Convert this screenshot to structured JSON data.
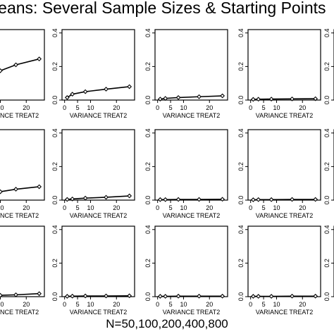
{
  "title": "Means: Several Sample Sizes & Starting Points",
  "bottom_label": "N=50,100,200,400,800",
  "colors": {
    "line": "#000000",
    "frame": "#000000",
    "text": "#000000"
  },
  "chart_data": {
    "type": "line",
    "panel_xlabel": "VARIANCE TREAT2",
    "partial_panel_xlabel": "NCE TREAT2",
    "x_ticks": [
      0,
      5,
      10,
      20
    ],
    "y_ticks": [
      "0.0",
      "0.2",
      "0.4"
    ],
    "ylim": [
      0,
      0.42
    ],
    "xlim": [
      -1,
      27
    ],
    "grid": false,
    "rows": 3,
    "columns": 5,
    "panels": [
      {
        "row": 0,
        "col": 0,
        "partial": true,
        "x": [
          5,
          10,
          16,
          25
        ],
        "y": [
          0.14,
          0.175,
          0.21,
          0.245
        ]
      },
      {
        "row": 0,
        "col": 1,
        "x": [
          1,
          3,
          8,
          16,
          25
        ],
        "y": [
          0.015,
          0.035,
          0.05,
          0.065,
          0.08
        ]
      },
      {
        "row": 0,
        "col": 2,
        "x": [
          1,
          3,
          8,
          16,
          25
        ],
        "y": [
          0.006,
          0.01,
          0.015,
          0.02,
          0.025
        ]
      },
      {
        "row": 0,
        "col": 3,
        "x": [
          1,
          3,
          8,
          16,
          25
        ],
        "y": [
          0.004,
          0.005,
          0.006,
          0.007,
          0.008
        ]
      },
      {
        "row": 1,
        "col": 0,
        "partial": true,
        "x": [
          5,
          10,
          16,
          25
        ],
        "y": [
          0.035,
          0.05,
          0.065,
          0.08
        ]
      },
      {
        "row": 1,
        "col": 1,
        "x": [
          1,
          3,
          8,
          16,
          25
        ],
        "y": [
          0.004,
          0.007,
          0.012,
          0.017,
          0.025
        ]
      },
      {
        "row": 1,
        "col": 2,
        "x": [
          1,
          3,
          8,
          16,
          25
        ],
        "y": [
          0.003,
          0.003,
          0.004,
          0.004,
          0.005
        ]
      },
      {
        "row": 1,
        "col": 3,
        "x": [
          1,
          3,
          8,
          16,
          25
        ],
        "y": [
          0.002,
          0.003,
          0.003,
          0.004,
          0.004
        ]
      },
      {
        "row": 2,
        "col": 0,
        "partial": true,
        "x": [
          5,
          10,
          16,
          25
        ],
        "y": [
          0.005,
          0.008,
          0.011,
          0.018
        ]
      },
      {
        "row": 2,
        "col": 1,
        "x": [
          1,
          3,
          8,
          16,
          25
        ],
        "y": [
          0.002,
          0.003,
          0.004,
          0.004,
          0.005
        ]
      },
      {
        "row": 2,
        "col": 2,
        "x": [
          1,
          3,
          8,
          16,
          25
        ],
        "y": [
          0.002,
          0.002,
          0.003,
          0.003,
          0.003
        ]
      },
      {
        "row": 2,
        "col": 3,
        "x": [
          1,
          3,
          8,
          16,
          25
        ],
        "y": [
          0.002,
          0.002,
          0.002,
          0.003,
          0.003
        ]
      }
    ]
  }
}
